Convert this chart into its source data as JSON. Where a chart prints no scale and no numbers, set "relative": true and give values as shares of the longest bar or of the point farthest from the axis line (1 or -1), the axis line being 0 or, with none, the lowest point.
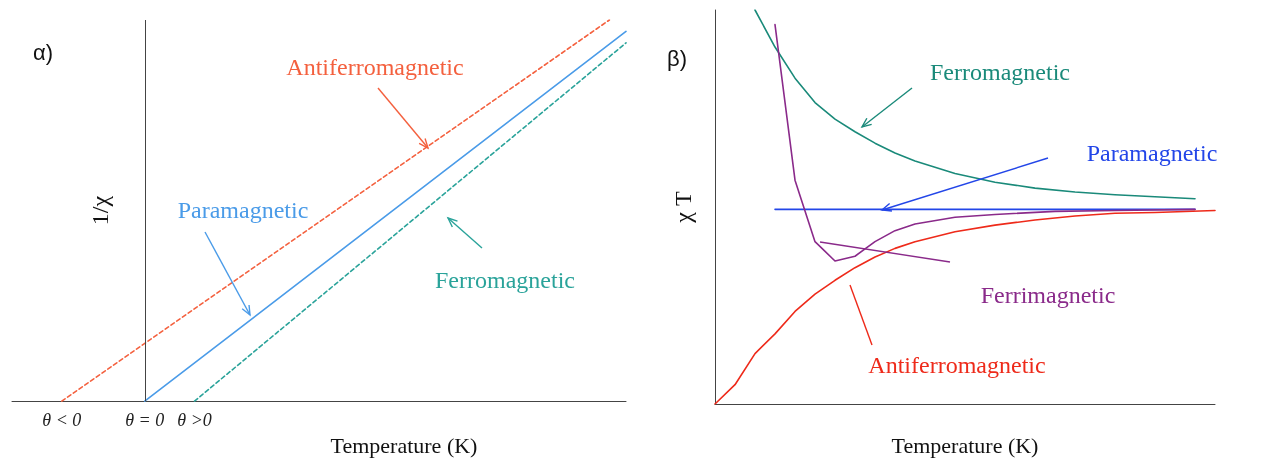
{
  "chart_data": [
    {
      "type": "line",
      "title": "α)",
      "xlabel": "Temperature (K)",
      "ylabel": "1/χ",
      "relative": true,
      "marker": "none",
      "categories": [
        null,
        null,
        null,
        "θ < 0",
        null,
        null,
        null,
        null,
        "θ = 0",
        null,
        null,
        "θ >0",
        null,
        null,
        null,
        null,
        null,
        null,
        null,
        null,
        null,
        null,
        null,
        null,
        null,
        null,
        null,
        null,
        null,
        null,
        null,
        null,
        null,
        null,
        null,
        null,
        null,
        null
      ],
      "ref_lines": [
        {
          "axis": "x",
          "value": "θ = 0"
        }
      ],
      "series": [
        {
          "name": "Antiferromagnetic",
          "color": "#f4603e",
          "line_style": "dashed",
          "values": [
            null,
            null,
            null,
            0,
            null,
            null,
            null,
            null,
            null,
            null,
            null,
            null,
            null,
            null,
            null,
            null,
            null,
            null,
            null,
            null,
            null,
            null,
            null,
            null,
            null,
            null,
            null,
            null,
            null,
            null,
            null,
            null,
            null,
            null,
            null,
            null,
            1,
            null
          ]
        },
        {
          "name": "Paramagnetic",
          "color": "#4a9be8",
          "line_style": "solid",
          "values": [
            null,
            null,
            null,
            null,
            null,
            null,
            null,
            null,
            0,
            null,
            null,
            null,
            null,
            null,
            null,
            null,
            null,
            null,
            null,
            null,
            null,
            null,
            null,
            null,
            null,
            null,
            null,
            null,
            null,
            null,
            null,
            null,
            null,
            null,
            null,
            null,
            null,
            0.97
          ]
        },
        {
          "name": "Ferromagnetic",
          "color": "#2aa39a",
          "line_style": "dashed",
          "values": [
            null,
            null,
            null,
            null,
            null,
            null,
            null,
            null,
            null,
            null,
            null,
            0,
            null,
            null,
            null,
            null,
            null,
            null,
            null,
            null,
            null,
            null,
            null,
            null,
            null,
            null,
            null,
            null,
            null,
            null,
            null,
            null,
            null,
            null,
            null,
            null,
            null,
            0.94
          ]
        }
      ]
    },
    {
      "type": "line",
      "title": "β)",
      "xlabel": "Temperature (K)",
      "ylabel": "χ T",
      "relative": true,
      "marker": "none",
      "categories": [
        null,
        null,
        null,
        null,
        null,
        null,
        null,
        null,
        null,
        null,
        null,
        null,
        null,
        null,
        null,
        null,
        null,
        null,
        null,
        null,
        null,
        null,
        null,
        null,
        null,
        null
      ],
      "series": [
        {
          "name": "Ferromagnetic",
          "color": "#1a8a7a",
          "line_style": "solid",
          "values": [
            null,
            null,
            1,
            0.906,
            0.827,
            0.765,
            0.723,
            0.691,
            0.662,
            0.637,
            0.617,
            null,
            0.585,
            null,
            0.563,
            null,
            0.548,
            null,
            0.538,
            null,
            0.531,
            null,
            0.526,
            null,
            0.521,
            null
          ]
        },
        {
          "name": "Paramagnetic",
          "color": "#2346e8",
          "line_style": "solid",
          "values": [
            null,
            null,
            null,
            0.494,
            null,
            null,
            null,
            null,
            null,
            null,
            null,
            null,
            null,
            null,
            null,
            null,
            null,
            null,
            null,
            null,
            null,
            null,
            null,
            null,
            0.494,
            null
          ]
        },
        {
          "name": "Ferrimagnetic",
          "color": "#8a2a8a",
          "line_style": "solid",
          "values": [
            null,
            null,
            null,
            0.963,
            0.568,
            0.412,
            0.363,
            0.375,
            0.412,
            0.44,
            0.457,
            null,
            0.474,
            null,
            0.481,
            null,
            null,
            0.489,
            null,
            null,
            0.491,
            null,
            null,
            null,
            0.494,
            null
          ]
        },
        {
          "name": "Antiferromagnetic",
          "color": "#ee2a1a",
          "line_style": "solid",
          "values": [
            0,
            0.049,
            0.128,
            0.178,
            0.235,
            0.279,
            0.314,
            0.346,
            0.373,
            0.395,
            0.412,
            null,
            0.437,
            null,
            0.454,
            null,
            0.467,
            null,
            0.477,
            null,
            0.484,
            null,
            0.486,
            null,
            null,
            0.491
          ]
        }
      ]
    }
  ]
}
